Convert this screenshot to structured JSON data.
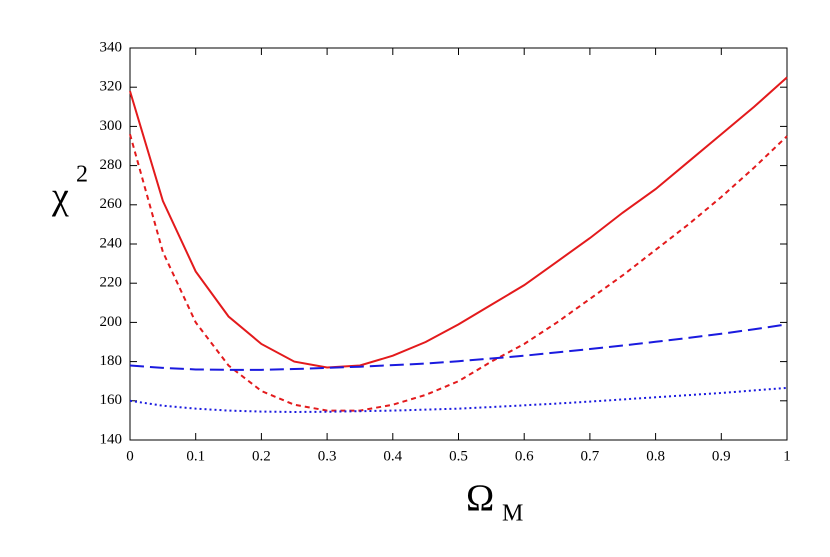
{
  "chart_data": {
    "type": "line",
    "y_label": "χ",
    "y_label_sup": "2",
    "x_label": "Ω",
    "x_label_sub": "M",
    "x": [
      0,
      0.05,
      0.1,
      0.15,
      0.2,
      0.25,
      0.3,
      0.35,
      0.4,
      0.45,
      0.5,
      0.55,
      0.6,
      0.65,
      0.7,
      0.75,
      0.8,
      0.85,
      0.9,
      0.95,
      1
    ],
    "series": [
      {
        "color": "#e31a1c",
        "dash": "solid",
        "values": [
          318,
          262,
          226,
          203,
          189,
          180,
          177,
          178,
          183,
          190,
          199,
          209,
          219,
          231,
          243,
          256,
          268,
          282,
          296,
          310,
          325
        ]
      },
      {
        "color": "#e31a1c",
        "dash": "dashed",
        "values": [
          296,
          236,
          200,
          178,
          165,
          158,
          155,
          155,
          158,
          163,
          170,
          180,
          189,
          200,
          212,
          224,
          237,
          250,
          264,
          279,
          295
        ]
      },
      {
        "color": "#1a1adf",
        "dash": "long-dash",
        "values": [
          178,
          176.8,
          176,
          175.8,
          175.8,
          176.2,
          176.8,
          177.4,
          178.2,
          179,
          180.2,
          181.6,
          183,
          184.7,
          186.4,
          188.2,
          190.1,
          192.1,
          194.2,
          196.5,
          199
        ]
      },
      {
        "color": "#1a1adf",
        "dash": "dotted",
        "values": [
          160,
          157.5,
          156,
          155,
          154.5,
          154.3,
          154.4,
          154.7,
          155,
          155.5,
          156,
          156.8,
          157.7,
          158.6,
          159.6,
          160.7,
          161.8,
          162.9,
          164,
          165.3,
          166.6
        ]
      }
    ],
    "xlim": [
      0,
      1
    ],
    "xticks": [
      0,
      0.1,
      0.2,
      0.3,
      0.4,
      0.5,
      0.6,
      0.7,
      0.8,
      0.9,
      1
    ],
    "ylim": [
      140,
      340
    ],
    "yticks": [
      140,
      160,
      180,
      200,
      220,
      240,
      260,
      280,
      300,
      320,
      340
    ],
    "grid": false
  }
}
